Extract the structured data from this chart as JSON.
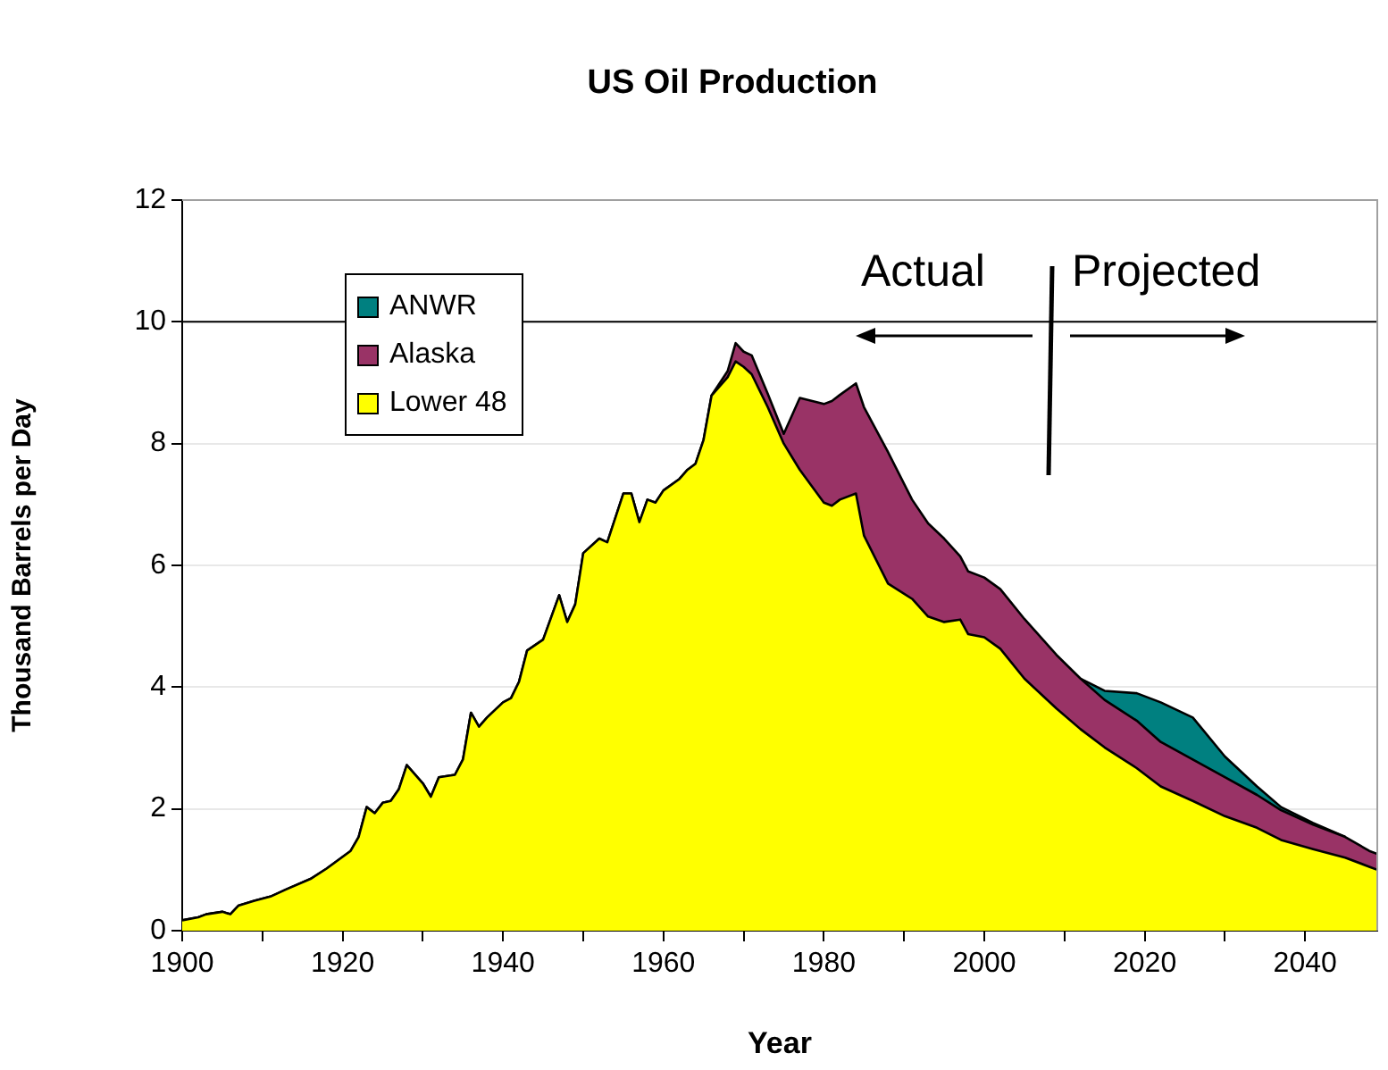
{
  "chart_data": {
    "type": "area",
    "title": "US Oil Production",
    "xlabel": "Year",
    "ylabel": "Thousand Barrels per Day",
    "stacked": true,
    "x": [
      1900,
      1902,
      1903,
      1905,
      1906,
      1907,
      1909,
      1911,
      1913,
      1916,
      1918,
      1921,
      1922,
      1923,
      1924,
      1925,
      1926,
      1927,
      1928,
      1930,
      1931,
      1932,
      1934,
      1935,
      1936,
      1937,
      1938,
      1940,
      1941,
      1942,
      1943,
      1945,
      1947,
      1948,
      1949,
      1950,
      1952,
      1953,
      1955,
      1956,
      1957,
      1958,
      1959,
      1960,
      1962,
      1963,
      1964,
      1965,
      1966,
      1968,
      1969,
      1970,
      1971,
      1973,
      1975,
      1977,
      1980,
      1981,
      1982,
      1984,
      1985,
      1988,
      1991,
      1993,
      1995,
      1997,
      1998,
      2000,
      2002,
      2005,
      2009,
      2012,
      2015,
      2019,
      2022,
      2026,
      2030,
      2034,
      2037,
      2041,
      2045,
      2048,
      2049
    ],
    "series": [
      {
        "name": "Lower 48",
        "color": "#ffff00",
        "values": [
          0.17,
          0.22,
          0.27,
          0.31,
          0.27,
          0.41,
          0.49,
          0.56,
          0.68,
          0.85,
          1.02,
          1.31,
          1.54,
          2.03,
          1.93,
          2.1,
          2.13,
          2.32,
          2.72,
          2.42,
          2.2,
          2.52,
          2.56,
          2.81,
          3.58,
          3.35,
          3.5,
          3.75,
          3.82,
          4.09,
          4.6,
          4.78,
          5.51,
          5.07,
          5.36,
          6.2,
          6.44,
          6.38,
          7.18,
          7.18,
          6.71,
          7.08,
          7.03,
          7.23,
          7.42,
          7.57,
          7.67,
          8.06,
          8.79,
          9.09,
          9.35,
          9.26,
          9.14,
          8.6,
          8.0,
          7.57,
          7.03,
          6.98,
          7.08,
          7.18,
          6.49,
          5.7,
          5.45,
          5.16,
          5.07,
          5.11,
          4.87,
          4.82,
          4.63,
          4.14,
          3.65,
          3.31,
          3.01,
          2.67,
          2.37,
          2.13,
          1.88,
          1.69,
          1.49,
          1.34,
          1.2,
          1.05,
          1.0
        ]
      },
      {
        "name": "Alaska",
        "color": "#993366",
        "values": [
          0,
          0,
          0,
          0,
          0,
          0,
          0,
          0,
          0,
          0,
          0,
          0,
          0,
          0,
          0,
          0,
          0,
          0,
          0,
          0,
          0,
          0,
          0,
          0,
          0,
          0,
          0,
          0,
          0,
          0,
          0,
          0,
          0,
          0,
          0,
          0,
          0,
          0,
          0,
          0,
          0,
          0,
          0,
          0,
          0,
          0,
          0,
          0,
          0,
          0.1,
          0.3,
          0.25,
          0.31,
          0.22,
          0.16,
          1.18,
          1.62,
          1.72,
          1.72,
          1.81,
          2.11,
          2.16,
          1.63,
          1.53,
          1.37,
          1.04,
          1.03,
          0.98,
          0.98,
          0.98,
          0.88,
          0.83,
          0.78,
          0.78,
          0.73,
          0.68,
          0.64,
          0.54,
          0.49,
          0.4,
          0.34,
          0.26,
          0.26
        ]
      },
      {
        "name": "ANWR",
        "color": "#008080",
        "values": [
          null,
          null,
          null,
          null,
          null,
          null,
          null,
          null,
          null,
          null,
          null,
          null,
          null,
          null,
          null,
          null,
          null,
          null,
          null,
          null,
          null,
          null,
          null,
          null,
          null,
          null,
          null,
          null,
          null,
          null,
          null,
          null,
          null,
          null,
          null,
          null,
          null,
          null,
          null,
          null,
          null,
          null,
          null,
          null,
          null,
          null,
          null,
          null,
          null,
          null,
          null,
          null,
          null,
          null,
          null,
          null,
          null,
          null,
          null,
          null,
          null,
          null,
          null,
          null,
          null,
          null,
          null,
          null,
          null,
          null,
          null,
          0,
          0.15,
          0.45,
          0.65,
          0.69,
          0.34,
          0.14,
          0.05,
          0.03,
          0,
          null,
          null
        ]
      }
    ],
    "xlim": [
      1900,
      2049
    ],
    "xticks": [
      1900,
      {
        "value": 1910,
        "label": null
      },
      1920,
      {
        "value": 1930,
        "label": null
      },
      1940,
      {
        "value": 1950,
        "label": null
      },
      1960,
      {
        "value": 1970,
        "label": null
      },
      1980,
      {
        "value": 1990,
        "label": null
      },
      2000,
      {
        "value": 2010,
        "label": null
      },
      2020,
      {
        "value": 2030,
        "label": null
      },
      2040
    ],
    "ylim": [
      0,
      12
    ],
    "yticks": [
      0,
      2,
      4,
      6,
      8,
      10,
      12
    ],
    "grid": "y",
    "legend": "top left",
    "ref_lines": [
      {
        "axis": "y",
        "value": 10,
        "color": "#000000"
      }
    ],
    "annotations": [
      "Actual",
      "Projected"
    ]
  }
}
